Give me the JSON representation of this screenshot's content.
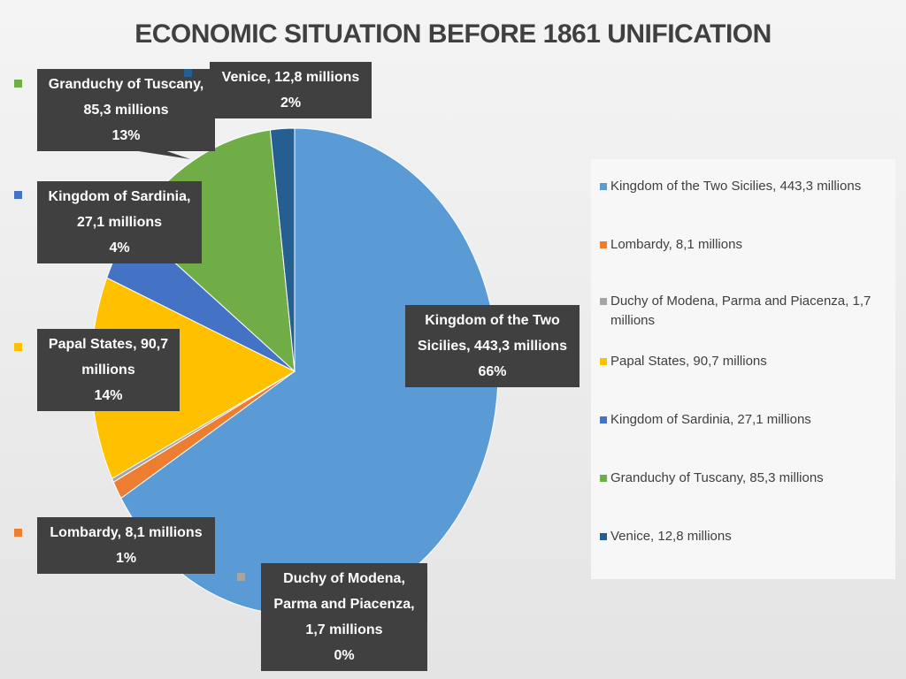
{
  "chart_data": {
    "type": "pie",
    "title": "ECONOMIC SITUATION BEFORE 1861 UNIFICATION",
    "categories": [
      "Kingdom of the Two Sicilies,  443,3 millions",
      "Lombardy, 8,1 millions",
      "Duchy of Modena, Parma and Piacenza, 1,7 millions",
      "Papal States, 90,7 millions",
      "Kingdom of Sardinia, 27,1 millions",
      "Granduchy of Tuscany, 85,3 millions",
      "Venice, 12,8 millions"
    ],
    "values": [
      443.3,
      8.1,
      1.7,
      90.7,
      27.1,
      85.3,
      12.8
    ],
    "percent_labels": [
      "66%",
      "1%",
      "0%",
      "14%",
      "4%",
      "13%",
      "2%"
    ],
    "colors": [
      "#5b9bd5",
      "#ed7d31",
      "#a5a5a5",
      "#ffc000",
      "#4472c4",
      "#70ad47",
      "#255e91"
    ],
    "legend": "right"
  }
}
